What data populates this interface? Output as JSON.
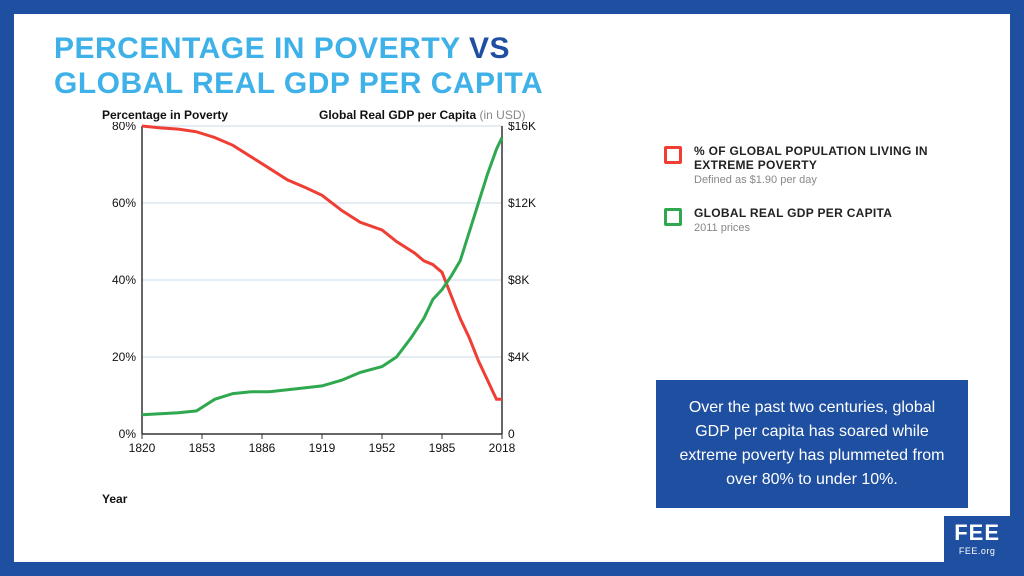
{
  "title": {
    "line1_a": "PERCENTAGE IN POVERTY ",
    "line1_b": "VS",
    "line2": "GLOBAL REAL GDP PER CAPITA"
  },
  "chart": {
    "type": "dual-axis-line",
    "background_color": "#ffffff",
    "grid_color": "#c9d8e8",
    "axis_color": "#333333",
    "axis_label_left": "Percentage in Poverty",
    "axis_label_right_main": "Global Real GDP per Capita",
    "axis_label_right_sub": " (in USD)",
    "xlabel": "Year",
    "x": {
      "min": 1820,
      "max": 2018,
      "ticks": [
        1820,
        1853,
        1886,
        1919,
        1952,
        1985,
        2018
      ]
    },
    "y_left": {
      "min": 0,
      "max": 80,
      "tick_step": 20,
      "tick_format": "{v}%"
    },
    "y_right": {
      "min": 0,
      "max": 16,
      "tick_step": 4,
      "tick_format": "${v}K"
    },
    "series": {
      "poverty": {
        "color": "#ef3e33",
        "line_width": 3,
        "axis": "left",
        "points": [
          [
            1820,
            80
          ],
          [
            1830,
            79.5
          ],
          [
            1840,
            79.2
          ],
          [
            1850,
            78.5
          ],
          [
            1860,
            77
          ],
          [
            1870,
            75
          ],
          [
            1880,
            72
          ],
          [
            1890,
            69
          ],
          [
            1900,
            66
          ],
          [
            1910,
            64
          ],
          [
            1919,
            62
          ],
          [
            1930,
            58
          ],
          [
            1940,
            55
          ],
          [
            1952,
            53
          ],
          [
            1960,
            50
          ],
          [
            1970,
            47
          ],
          [
            1975,
            45
          ],
          [
            1980,
            44
          ],
          [
            1985,
            42
          ],
          [
            1990,
            36
          ],
          [
            1995,
            30
          ],
          [
            2000,
            25
          ],
          [
            2005,
            19
          ],
          [
            2010,
            14
          ],
          [
            2013,
            11
          ],
          [
            2015,
            9
          ],
          [
            2018,
            9
          ]
        ]
      },
      "gdp": {
        "color": "#2fa84f",
        "line_width": 3,
        "axis": "right",
        "points": [
          [
            1820,
            1.0
          ],
          [
            1830,
            1.05
          ],
          [
            1840,
            1.1
          ],
          [
            1850,
            1.2
          ],
          [
            1860,
            1.8
          ],
          [
            1870,
            2.1
          ],
          [
            1880,
            2.2
          ],
          [
            1890,
            2.2
          ],
          [
            1900,
            2.3
          ],
          [
            1910,
            2.4
          ],
          [
            1919,
            2.5
          ],
          [
            1930,
            2.8
          ],
          [
            1940,
            3.2
          ],
          [
            1952,
            3.5
          ],
          [
            1960,
            4.0
          ],
          [
            1968,
            5.0
          ],
          [
            1975,
            6.0
          ],
          [
            1980,
            7.0
          ],
          [
            1985,
            7.5
          ],
          [
            1990,
            8.2
          ],
          [
            1995,
            9.0
          ],
          [
            2000,
            10.5
          ],
          [
            2005,
            12.0
          ],
          [
            2010,
            13.5
          ],
          [
            2015,
            14.8
          ],
          [
            2018,
            15.4
          ]
        ]
      }
    }
  },
  "legend": {
    "items": [
      {
        "color": "#ef3e33",
        "title": "% OF GLOBAL POPULATION LIVING IN EXTREME POVERTY",
        "sub": "Defined as $1.90 per day"
      },
      {
        "color": "#2fa84f",
        "title": "GLOBAL REAL GDP PER CAPITA",
        "sub": "2011 prices"
      }
    ]
  },
  "callout": {
    "text": "Over the past two centuries, global GDP per capita has soared while extreme poverty has plummeted from over 80% to under 10%.",
    "background_color": "#1e4fa0",
    "text_color": "#ffffff",
    "fontsize": 16
  },
  "badge": {
    "main": "FEE",
    "sub": "FEE.org"
  }
}
